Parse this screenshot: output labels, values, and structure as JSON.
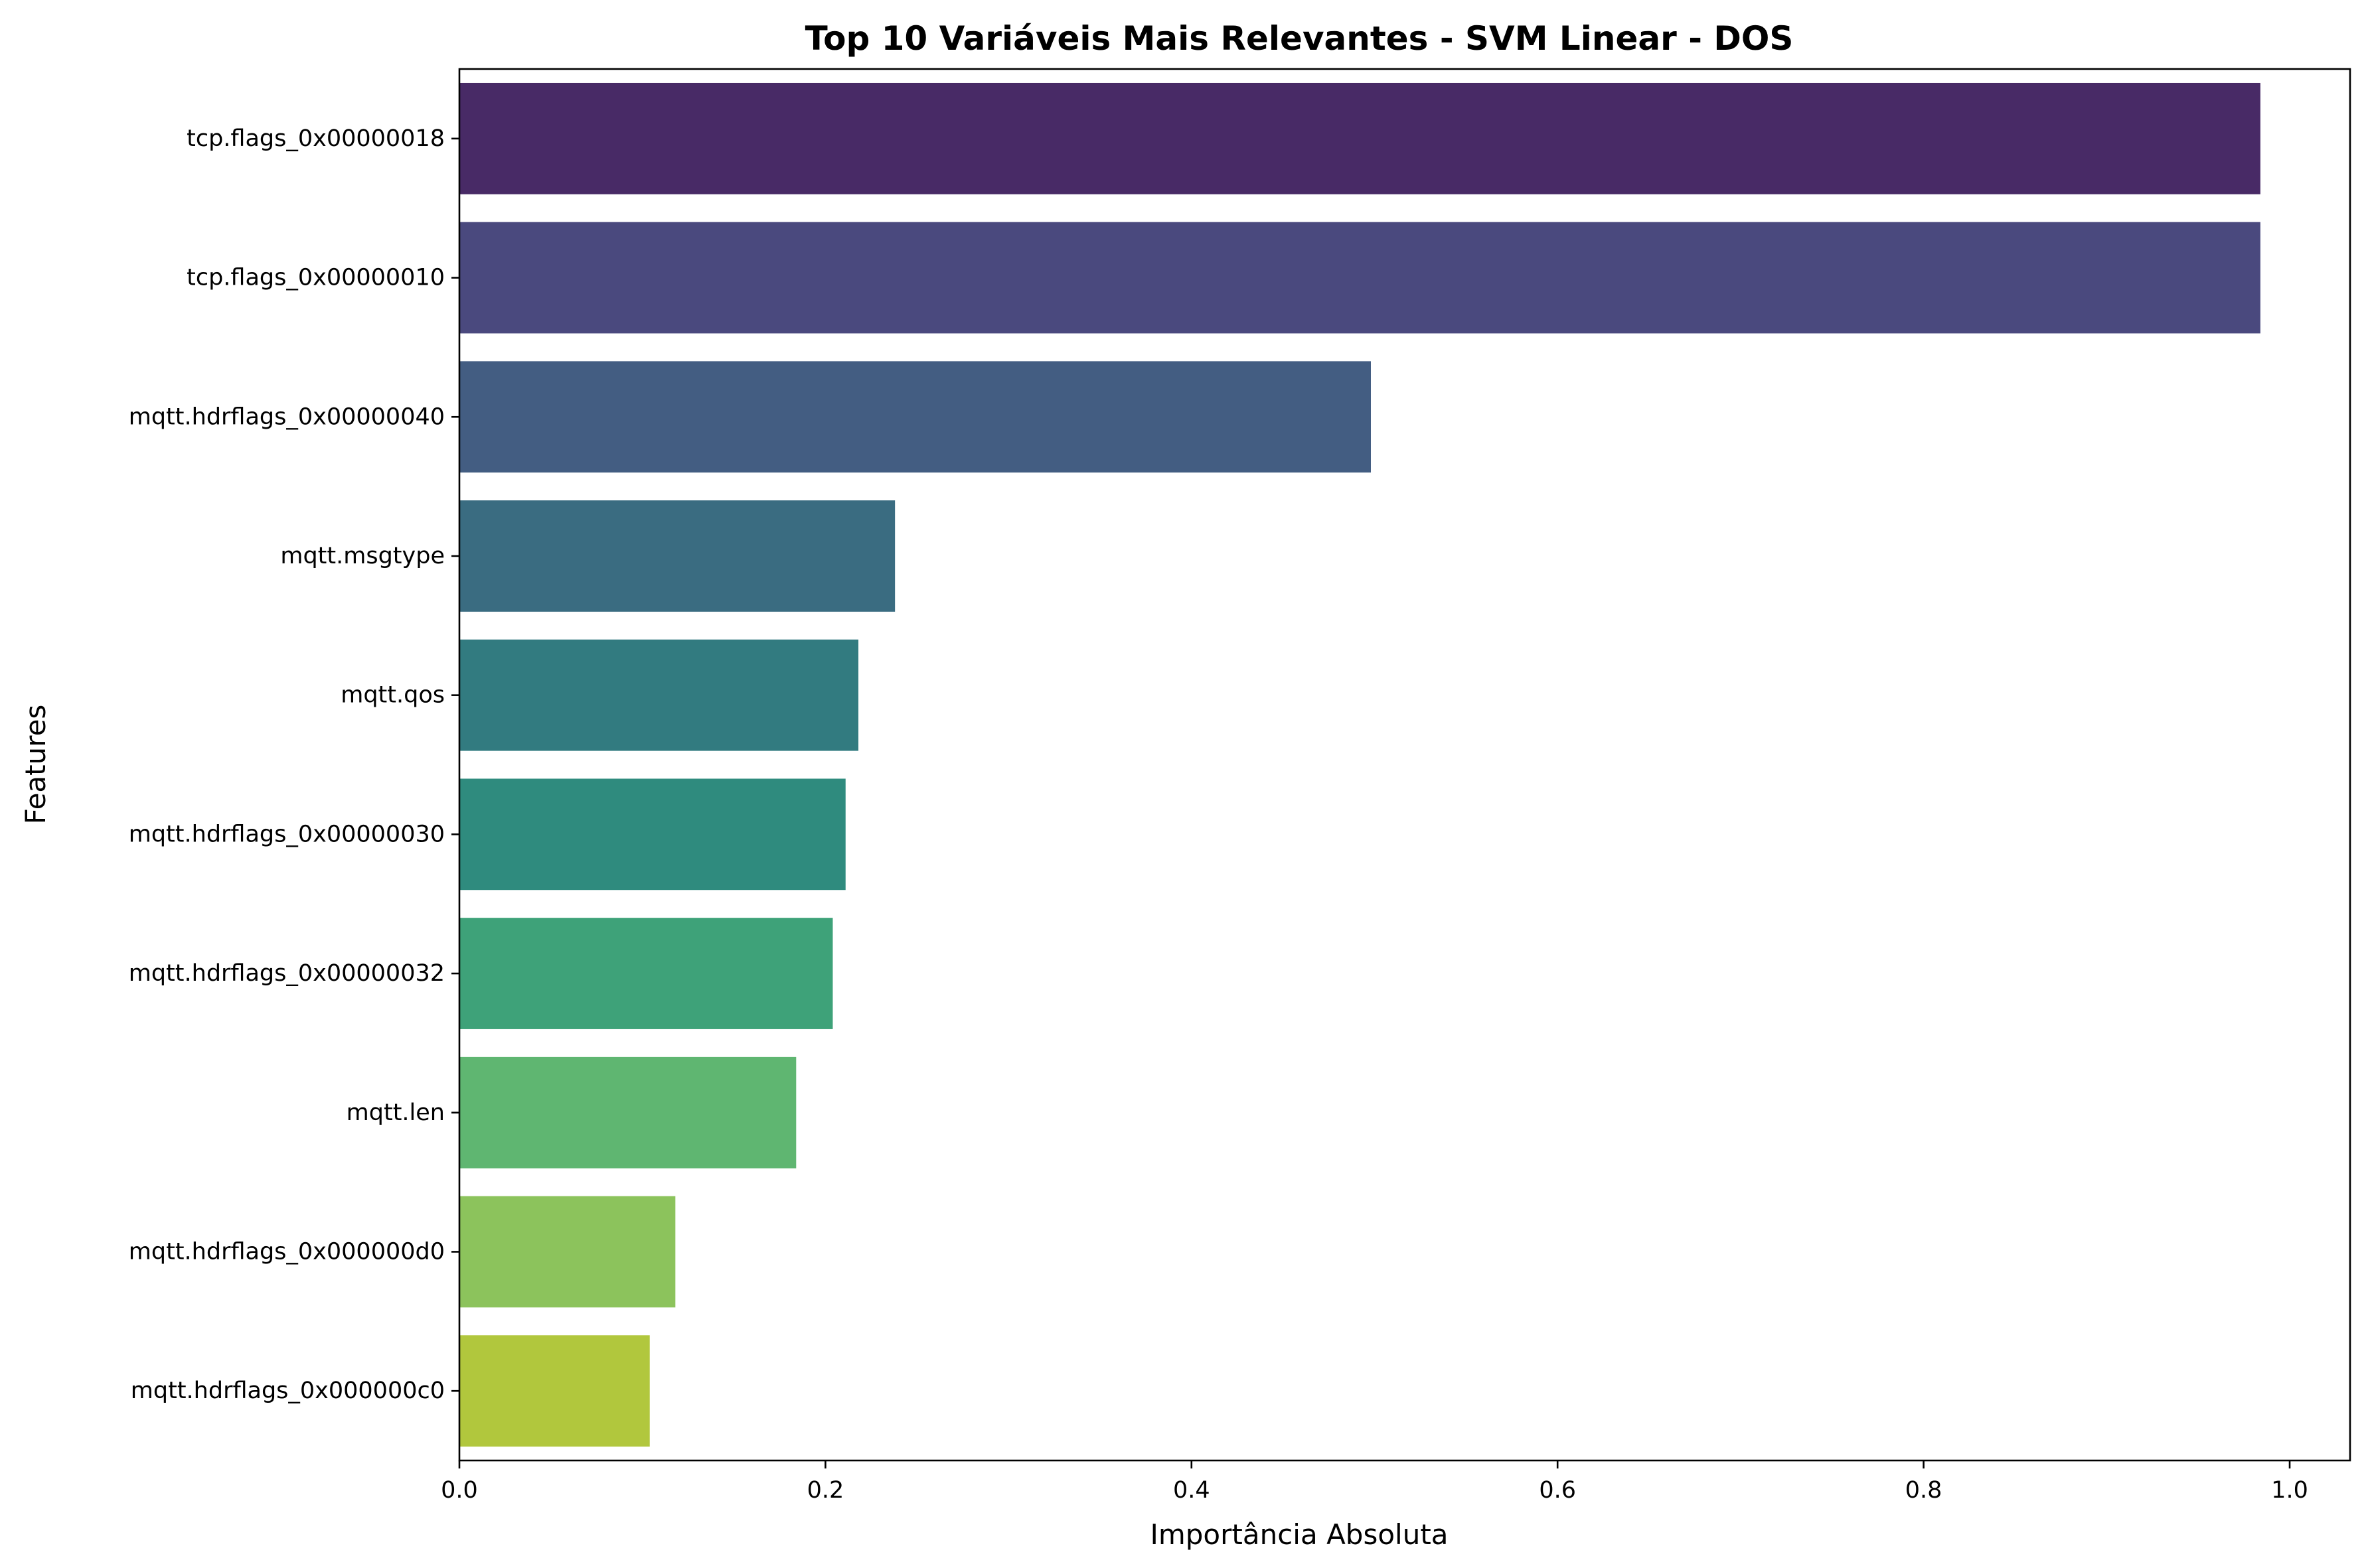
{
  "chart_data": {
    "type": "bar",
    "orientation": "horizontal",
    "title": "Top 10 Variáveis Mais Relevantes - SVM Linear - DOS",
    "xlabel": "Importância Absoluta",
    "ylabel": "Features",
    "xlim": [
      0.0,
      1.033
    ],
    "x_ticks": [
      0.0,
      0.2,
      0.4,
      0.6,
      0.8,
      1.0
    ],
    "x_tick_labels": [
      "0.0",
      "0.2",
      "0.4",
      "0.6",
      "0.8",
      "1.0"
    ],
    "grid": false,
    "legend": null,
    "categories": [
      "tcp.flags_0x00000018",
      "tcp.flags_0x00000010",
      "mqtt.hdrflags_0x00000040",
      "mqtt.msgtype",
      "mqtt.qos",
      "mqtt.hdrflags_0x00000030",
      "mqtt.hdrflags_0x00000032",
      "mqtt.len",
      "mqtt.hdrflags_0x000000d0",
      "mqtt.hdrflags_0x000000c0"
    ],
    "values": [
      0.984,
      0.984,
      0.498,
      0.238,
      0.218,
      0.211,
      0.204,
      0.184,
      0.118,
      0.104
    ],
    "colors": [
      "#482a66",
      "#4a497e",
      "#435d82",
      "#3a6c81",
      "#327b80",
      "#2f8b7e",
      "#3ea279",
      "#5fb671",
      "#8cc35c",
      "#b1c73d"
    ]
  }
}
